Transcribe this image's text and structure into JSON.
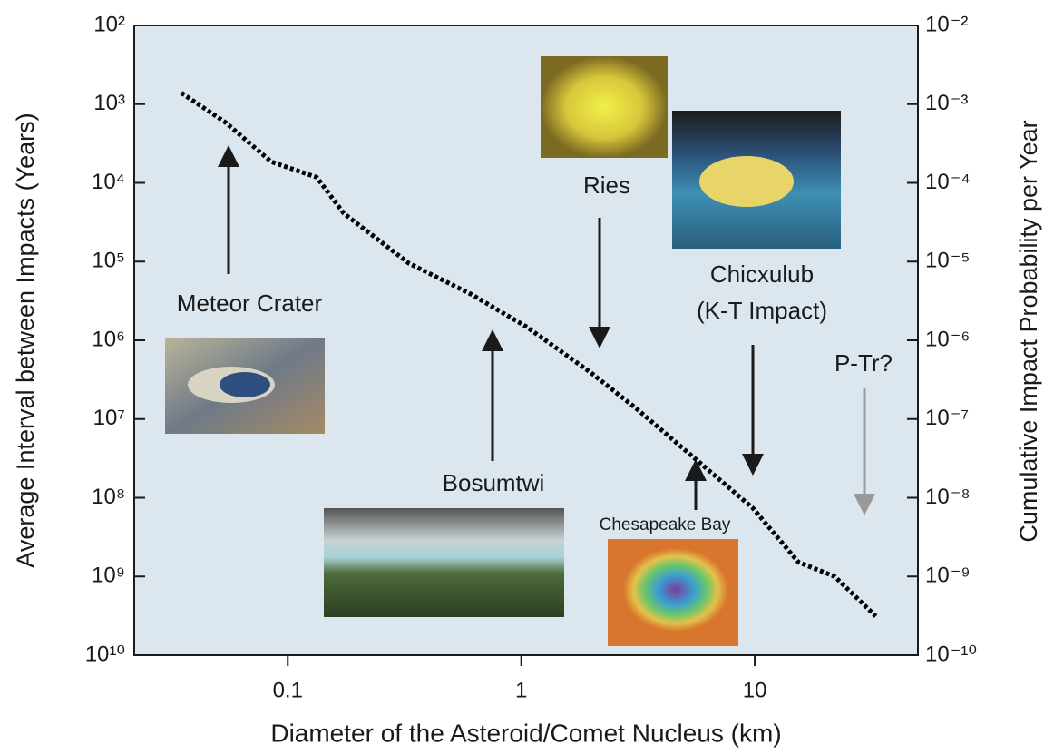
{
  "chart_data": {
    "type": "line",
    "xlabel": "Diameter of the Asteroid/Comet Nucleus (km)",
    "ylabel": "Average Interval between Impacts (Years)",
    "y2label": "Cumulative Impact Probability per Year",
    "x": [
      0.035,
      0.054,
      0.085,
      0.133,
      0.174,
      0.33,
      0.61,
      1.05,
      1.96,
      3.1,
      5.2,
      9.8,
      15.4,
      22,
      33
    ],
    "values": [
      720,
      1700,
      5400,
      8500,
      24500,
      105000,
      260000,
      670000,
      2500000,
      7300000,
      27000000,
      135000000,
      660000000,
      1000000000,
      3200000000
    ],
    "color": "#000000",
    "xscale": "log",
    "yscale": "log",
    "y2scale": "log",
    "xlim": [
      0.022,
      50
    ],
    "xticks": [
      0.1,
      1,
      10
    ],
    "ylim": [
      100,
      10000000000
    ],
    "y_inverted": true,
    "yticks": [
      {
        "value": 100,
        "label": "10²"
      },
      {
        "value": 1000,
        "label": "10³"
      },
      {
        "value": 10000,
        "label": "10⁴"
      },
      {
        "value": 100000,
        "label": "10⁵"
      },
      {
        "value": 1000000,
        "label": "10⁶"
      },
      {
        "value": 10000000,
        "label": "10⁷"
      },
      {
        "value": 100000000,
        "label": "10⁸"
      },
      {
        "value": 1000000000,
        "label": "10⁹"
      },
      {
        "value": 10000000000,
        "label": "10¹⁰"
      }
    ],
    "y2lim": [
      1e-10,
      0.01
    ],
    "y2ticks": [
      {
        "value": 0.01,
        "label": "10⁻²"
      },
      {
        "value": 0.001,
        "label": "10⁻³"
      },
      {
        "value": 0.0001,
        "label": "10⁻⁴"
      },
      {
        "value": 1e-05,
        "label": "10⁻⁵"
      },
      {
        "value": 1e-06,
        "label": "10⁻⁶"
      },
      {
        "value": 1e-07,
        "label": "10⁻⁷"
      },
      {
        "value": 1e-08,
        "label": "10⁻⁸"
      },
      {
        "value": 1e-09,
        "label": "10⁻⁹"
      },
      {
        "value": 1e-10,
        "label": "10⁻¹⁰"
      }
    ],
    "annotations": [
      "Meteor Crater",
      "Ries",
      "Chicxulub",
      "(K-T Impact)",
      "P-Tr?",
      "Bosumtwi",
      "Chesapeake Bay"
    ]
  }
}
